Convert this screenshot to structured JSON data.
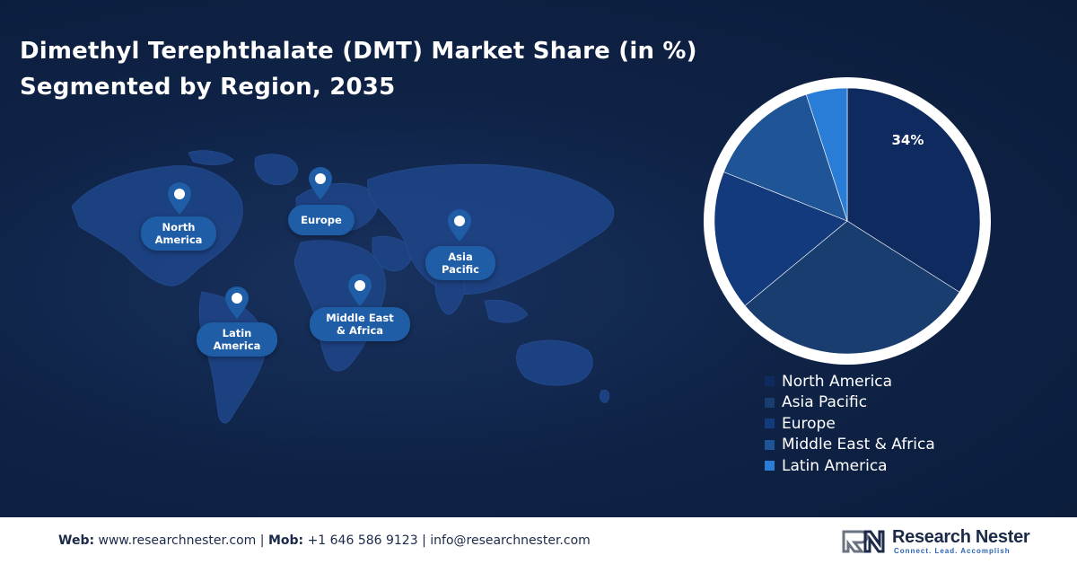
{
  "title_line1": "Dimethyl Terephthalate (DMT) Market Share (in %)",
  "title_line2": "Segmented by Region, 2035",
  "map_labels": {
    "north_america": "North\nAmerica",
    "europe": "Europe",
    "asia_pacific": "Asia\nPacific",
    "latin_america": "Latin\nAmerica",
    "middle_east_africa": "Middle East\n& Africa"
  },
  "chart_data": {
    "type": "pie",
    "categories": [
      "North America",
      "Asia Pacific",
      "Europe",
      "Middle East & Africa",
      "Latin America"
    ],
    "values": [
      34,
      30,
      17,
      14,
      5
    ],
    "data_labels": [
      "34%",
      "",
      "",
      "",
      ""
    ],
    "colors": [
      "#0f2a5e",
      "#1a3d70",
      "#123a7d",
      "#1f5596",
      "#2a7dd6"
    ],
    "legend_placement": "bottom-right"
  },
  "footer": {
    "web_label": "Web:",
    "web_value": "www.researchnester.com",
    "mob_label": "Mob:",
    "mob_value": "+1 646 586 9123",
    "email": "info@researchnester.com",
    "sep": "|"
  },
  "logo": {
    "name": "Research Nester",
    "tagline": "Connect. Lead. Accomplish"
  }
}
